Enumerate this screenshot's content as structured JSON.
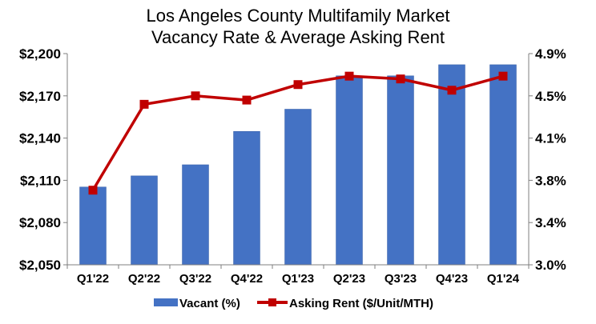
{
  "chart_data": {
    "type": "bar",
    "title": [
      "Los Angeles County Multifamily Market",
      "Vacancy Rate & Average Asking Rent"
    ],
    "categories": [
      "Q1'22",
      "Q2'22",
      "Q3'22",
      "Q4'22",
      "Q1'23",
      "Q2'23",
      "Q3'23",
      "Q4'23",
      "Q1'24"
    ],
    "left_axis": {
      "min": 2050,
      "max": 2200,
      "ticks": [
        "$2,200",
        "$2,170",
        "$2,140",
        "$2,110",
        "$2,080",
        "$2,050"
      ]
    },
    "right_axis": {
      "min": 3.0,
      "max": 4.9,
      "ticks": [
        "4.9%",
        "4.5%",
        "4.1%",
        "3.8%",
        "3.4%",
        "3.0%"
      ]
    },
    "series": [
      {
        "name": "Vacant (%)",
        "type": "bar",
        "axis": "right",
        "color": "#4472C4",
        "values": [
          3.7,
          3.8,
          3.9,
          4.2,
          4.4,
          4.7,
          4.7,
          4.8,
          4.8
        ]
      },
      {
        "name": "Asking Rent ($/Unit/MTH)",
        "type": "line",
        "axis": "left",
        "color": "#C00000",
        "values": [
          2103,
          2164,
          2170,
          2167,
          2178,
          2184,
          2182,
          2174,
          2184
        ]
      }
    ],
    "legend": "bottom",
    "grid": false
  }
}
